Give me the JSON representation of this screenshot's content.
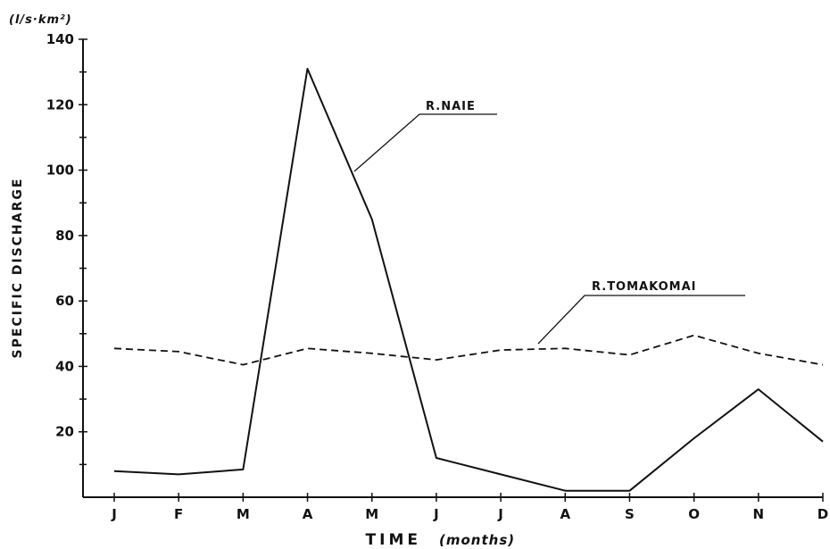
{
  "chart_data": {
    "type": "line",
    "title": "",
    "xlabel": "TIME",
    "xlabel_note": "(months)",
    "ylabel": "SPECIFIC DISCHARGE",
    "yunit": "(l/s·km²)",
    "ylim": [
      0,
      140
    ],
    "yticks": [
      20,
      40,
      60,
      80,
      100,
      120,
      140
    ],
    "categories": [
      "J",
      "F",
      "M",
      "A",
      "M",
      "J",
      "J",
      "A",
      "S",
      "O",
      "N",
      "D"
    ],
    "grid": false,
    "series": [
      {
        "name": "R.NAIE",
        "style": "solid",
        "values": [
          8,
          7,
          8.5,
          131,
          85,
          12,
          7,
          2,
          2,
          18,
          33,
          17
        ]
      },
      {
        "name": "R.TOMAKOMAI",
        "style": "dashed",
        "values": [
          45.5,
          44.5,
          40.5,
          45.5,
          44,
          42,
          45,
          45.5,
          43.5,
          49.5,
          44,
          40.5
        ]
      }
    ]
  }
}
